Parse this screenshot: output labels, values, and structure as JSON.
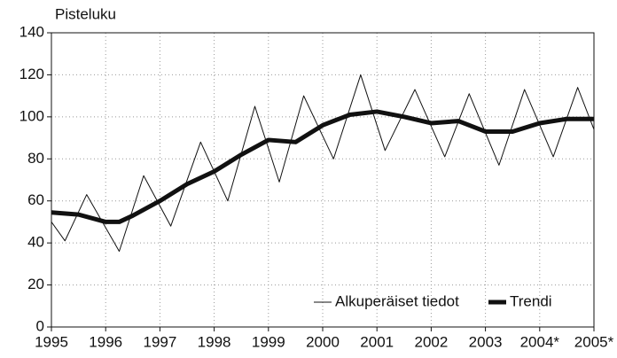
{
  "chart_data": {
    "type": "line",
    "y_label": "Pisteluku",
    "xlim": [
      1995,
      2005
    ],
    "ylim": [
      0,
      140
    ],
    "xticks": [
      1995,
      1996,
      1997,
      1998,
      1999,
      2000,
      2001,
      2002,
      2003,
      {
        "value": 2004,
        "label": "2004*"
      },
      {
        "value": 2005,
        "label": "2005*"
      }
    ],
    "yticks": [
      0,
      20,
      40,
      60,
      80,
      100,
      120,
      140
    ],
    "grid": true,
    "legend": "lower right",
    "series": [
      {
        "name": "Alkuperäiset tiedot",
        "color": "#111111",
        "width": 1,
        "x": [
          1995.0,
          1995.25,
          1995.65,
          1996.25,
          1996.7,
          1997.2,
          1997.75,
          1998.25,
          1998.75,
          1999.2,
          1999.65,
          2000.2,
          2000.7,
          2001.15,
          2001.7,
          2002.25,
          2002.7,
          2003.25,
          2003.72,
          2004.25,
          2004.7,
          2005.0
        ],
        "values": [
          50,
          41,
          63,
          36,
          72,
          48,
          88,
          60,
          105,
          69,
          110,
          80,
          120,
          84,
          113,
          81,
          111,
          77,
          113,
          81,
          114,
          94
        ]
      },
      {
        "name": "Trendi",
        "color": "#111111",
        "width": 5,
        "x": [
          1995.0,
          1995.5,
          1996.0,
          1996.25,
          1996.5,
          1997.0,
          1997.5,
          1998.0,
          1998.5,
          1999.0,
          1999.5,
          2000.0,
          2000.5,
          2001.0,
          2001.5,
          2002.0,
          2002.5,
          2003.0,
          2003.5,
          2004.0,
          2004.5,
          2005.0
        ],
        "values": [
          54.5,
          53.5,
          50,
          50,
          53,
          60,
          68,
          74,
          82,
          89,
          88,
          96,
          101,
          102.5,
          100,
          97,
          98,
          93,
          93,
          97,
          99,
          99
        ]
      }
    ]
  }
}
